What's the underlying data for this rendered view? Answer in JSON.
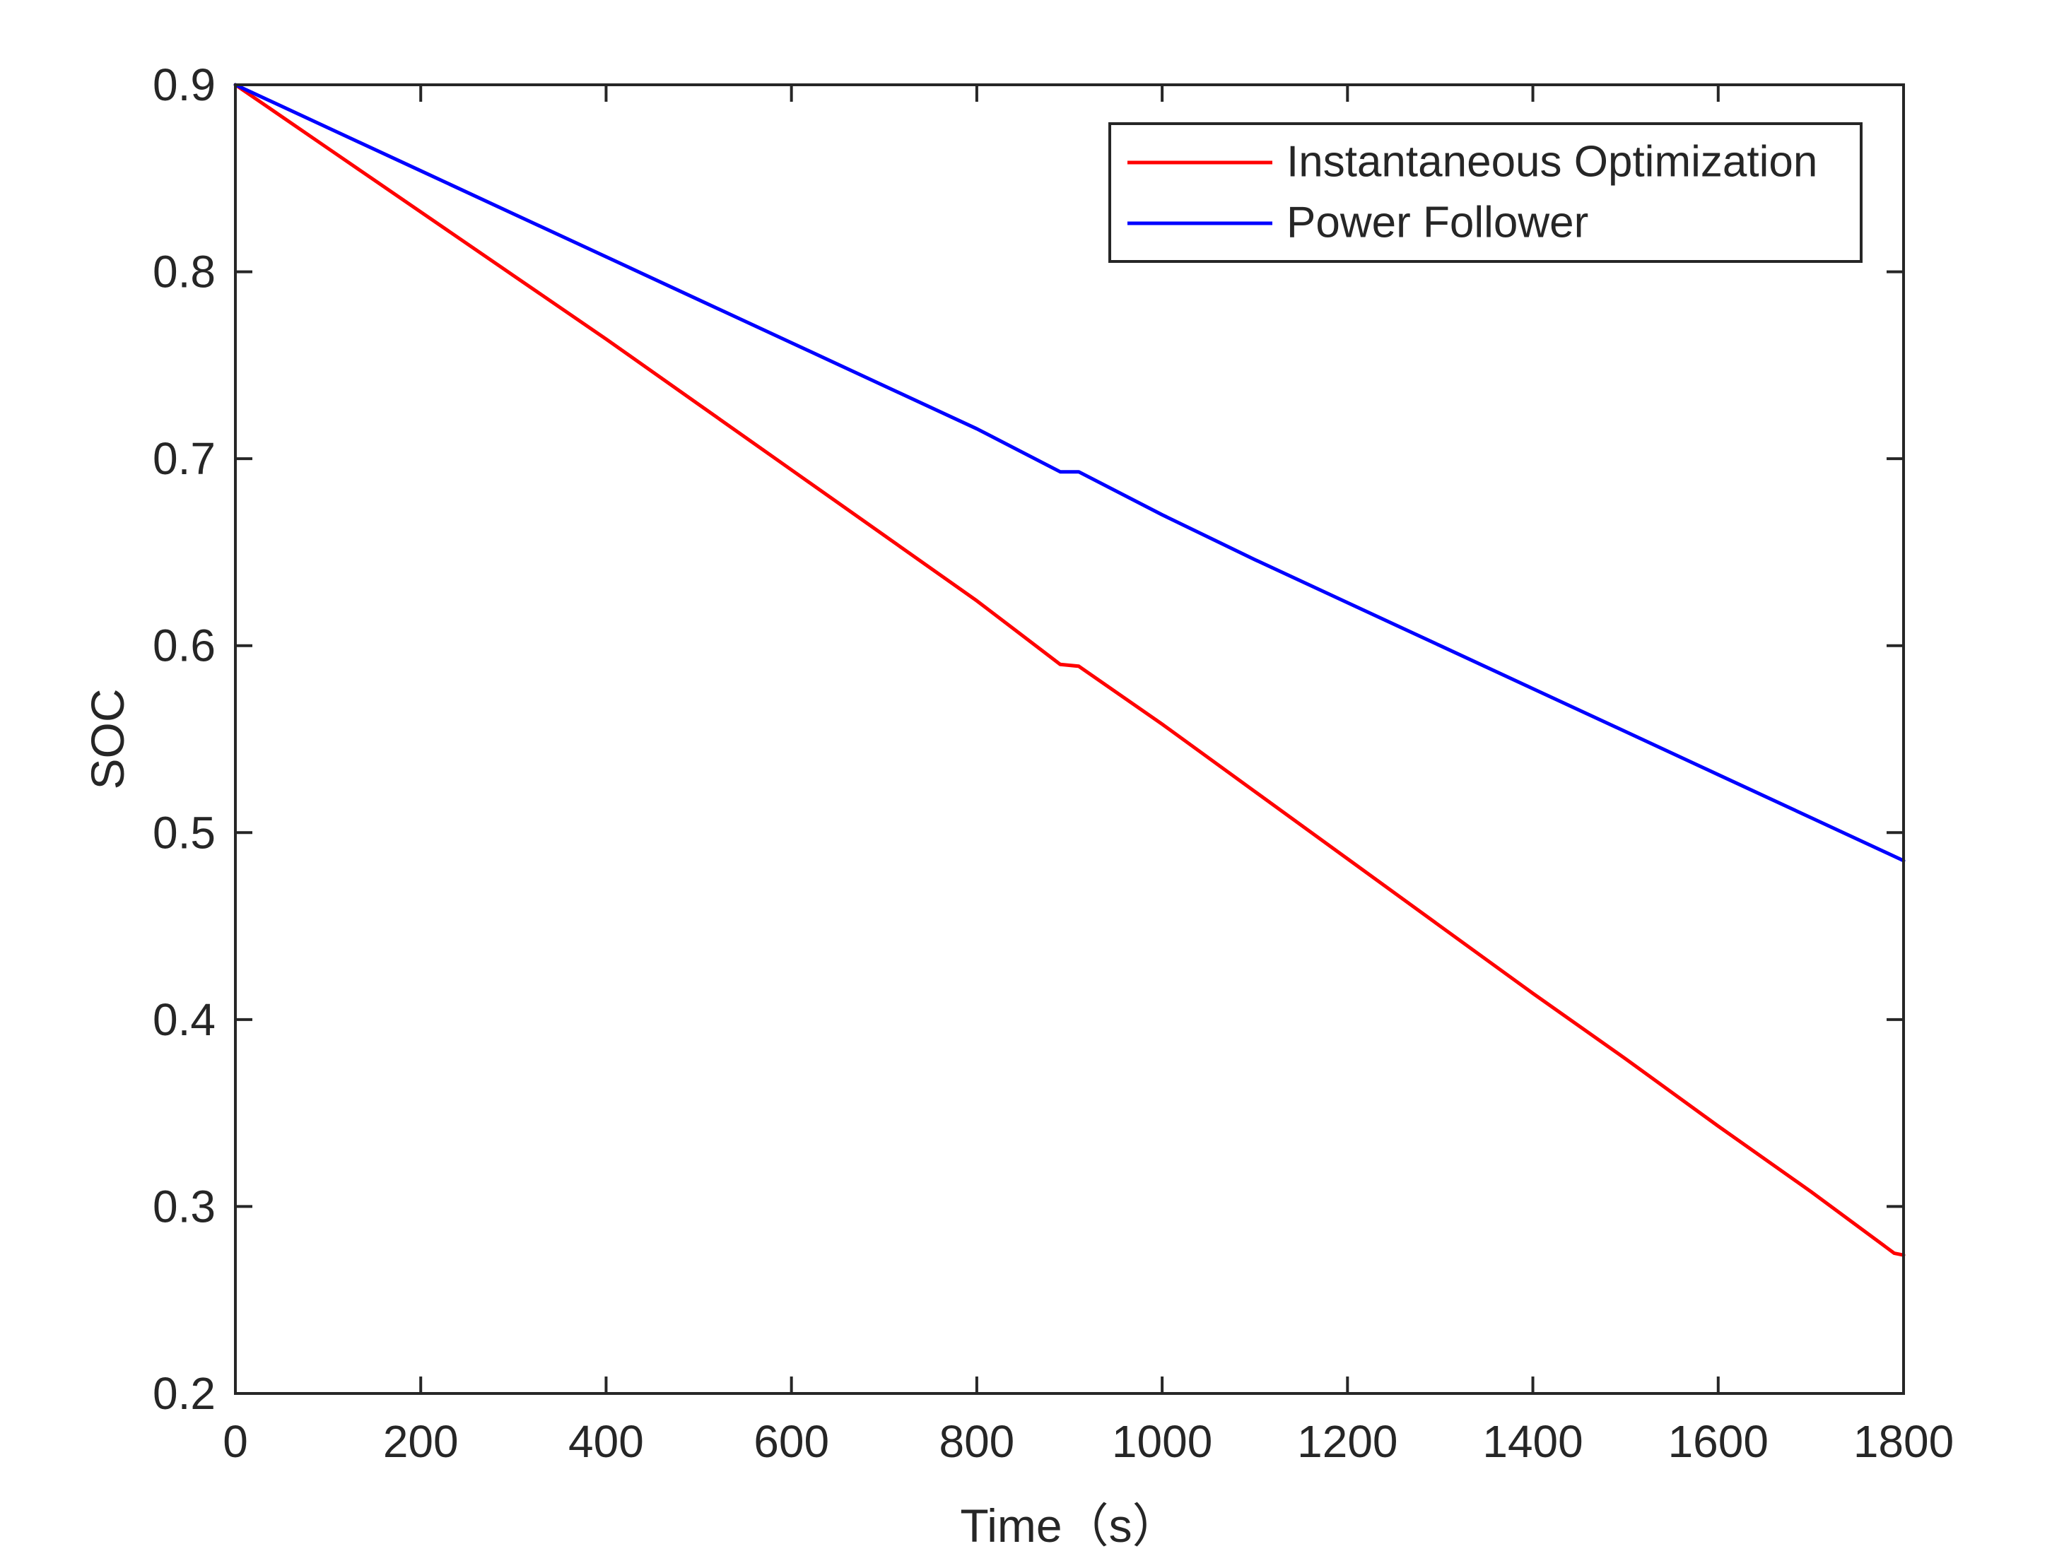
{
  "chart_data": {
    "type": "line",
    "title": "",
    "xlabel": "Time（s）",
    "ylabel": "SOC",
    "xlim": [
      0,
      1800
    ],
    "ylim": [
      0.2,
      0.9
    ],
    "xticks": [
      0,
      200,
      400,
      600,
      800,
      1000,
      1200,
      1400,
      1600,
      1800
    ],
    "yticks": [
      0.2,
      0.3,
      0.4,
      0.5,
      0.6,
      0.7,
      0.8,
      0.9
    ],
    "xtick_labels": [
      "0",
      "200",
      "400",
      "600",
      "800",
      "1000",
      "1200",
      "1400",
      "1600",
      "1800"
    ],
    "ytick_labels": [
      "0.2",
      "0.3",
      "0.4",
      "0.5",
      "0.6",
      "0.7",
      "0.8",
      "0.9"
    ],
    "grid": false,
    "legend_position": "top-right",
    "series": [
      {
        "name": "Instantaneous Optimization",
        "color": "#ff0000",
        "x": [
          0,
          100,
          200,
          300,
          400,
          500,
          600,
          700,
          800,
          890,
          910,
          1000,
          1100,
          1200,
          1300,
          1400,
          1500,
          1600,
          1700,
          1790,
          1800
        ],
        "y": [
          0.9,
          0.866,
          0.832,
          0.798,
          0.764,
          0.729,
          0.694,
          0.659,
          0.624,
          0.59,
          0.589,
          0.558,
          0.522,
          0.486,
          0.45,
          0.414,
          0.379,
          0.343,
          0.308,
          0.275,
          0.274
        ]
      },
      {
        "name": "Power Follower",
        "color": "#0000ff",
        "x": [
          0,
          100,
          200,
          300,
          400,
          500,
          600,
          700,
          800,
          890,
          910,
          1000,
          1100,
          1200,
          1300,
          1400,
          1500,
          1600,
          1700,
          1800
        ],
        "y": [
          0.9,
          0.877,
          0.854,
          0.831,
          0.808,
          0.785,
          0.762,
          0.739,
          0.716,
          0.693,
          0.693,
          0.67,
          0.646,
          0.623,
          0.6,
          0.577,
          0.554,
          0.531,
          0.508,
          0.485
        ]
      }
    ]
  }
}
